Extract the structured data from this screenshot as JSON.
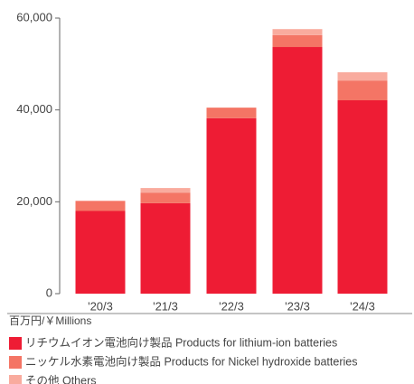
{
  "chart_data": {
    "type": "bar",
    "stacked": true,
    "categories": [
      "'20/3",
      "'21/3",
      "'22/3",
      "'23/3",
      "'24/3"
    ],
    "unit_label": "百万円/￥Millions",
    "series": [
      {
        "name": "リチウムイオン電池向け製品 Products for lithium-ion batteries",
        "color": "#ee1c34",
        "values": [
          18000,
          19700,
          38200,
          53700,
          42100
        ]
      },
      {
        "name": "ニッケル水素電池向け製品 Products for Nickel hydroxide batteries",
        "color": "#f47565",
        "values": [
          2200,
          2300,
          2300,
          2600,
          4300
        ]
      },
      {
        "name": "その他 Others",
        "color": "#f9ab9e",
        "values": [
          0,
          1000,
          0,
          1300,
          1800
        ]
      }
    ],
    "ylim": [
      0,
      60000
    ],
    "yticks": [
      0,
      {
        "value": 20000,
        "label": "20,000"
      },
      {
        "value": 40000,
        "label": "40,000"
      },
      {
        "value": 60000,
        "label": "60,000"
      }
    ]
  }
}
